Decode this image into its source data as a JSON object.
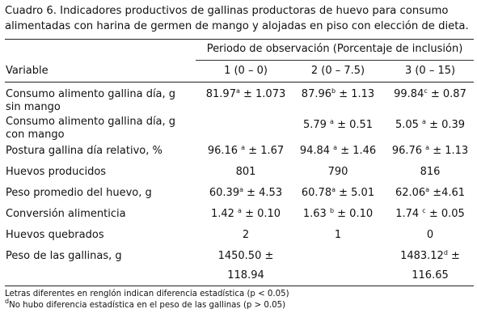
{
  "caption": "Cuadro 6. Indicadores productivos de gallinas productoras de huevo para consumo alimentadas con harina de germen de mango y alojadas en piso con elección de dieta.",
  "header": {
    "variable": "Variable",
    "period": "Periodo de observación (Porcentaje de inclusión)",
    "col1": "1 (0 – 0)",
    "col2": "2 (0 – 7.5)",
    "col3": "3 (0 – 15)"
  },
  "rows": [
    {
      "label": "Consumo alimento gallina día, g  sin mango",
      "c1": {
        "v": "81.97",
        "s": "a",
        "e": " ± 1.073"
      },
      "c2": {
        "v": "87.96",
        "s": "b",
        "e": " ± 1.13"
      },
      "c3": {
        "v": "99.84",
        "s": "c",
        "e": " ± 0.87"
      }
    },
    {
      "label": "Consumo alimento gallina día, g  con mango",
      "c1": {
        "v": "",
        "s": "",
        "e": ""
      },
      "c2": {
        "v": "5.79 ",
        "s": "a",
        "e": " ± 0.51"
      },
      "c3": {
        "v": "5.05 ",
        "s": "a",
        "e": " ± 0.39"
      }
    },
    {
      "label": "Postura gallina día relativo, %",
      "c1": {
        "v": "96.16 ",
        "s": "a",
        "e": " ± 1.67"
      },
      "c2": {
        "v": "94.84 ",
        "s": "a",
        "e": " ± 1.46"
      },
      "c3": {
        "v": "96.76 ",
        "s": "a",
        "e": " ± 1.13"
      }
    },
    {
      "label": "Huevos producidos",
      "c1": {
        "v": "801",
        "s": "",
        "e": ""
      },
      "c2": {
        "v": "790",
        "s": "",
        "e": ""
      },
      "c3": {
        "v": "816",
        "s": "",
        "e": ""
      }
    },
    {
      "label": "Peso promedio del huevo, g",
      "c1": {
        "v": "60.39",
        "s": "a",
        "e": " ± 4.53"
      },
      "c2": {
        "v": "60.78",
        "s": "a",
        "e": " ± 5.01"
      },
      "c3": {
        "v": "62.06",
        "s": "a",
        "e": " ±4.61"
      }
    },
    {
      "label": "Conversión alimenticia",
      "c1": {
        "v": "1.42 ",
        "s": "a",
        "e": " ± 0.10"
      },
      "c2": {
        "v": "1.63 ",
        "s": "b",
        "e": " ± 0.10"
      },
      "c3": {
        "v": "1.74 ",
        "s": "c",
        "e": " ± 0.05"
      }
    },
    {
      "label": "Huevos quebrados",
      "c1": {
        "v": "2",
        "s": "",
        "e": ""
      },
      "c2": {
        "v": "1",
        "s": "",
        "e": ""
      },
      "c3": {
        "v": "0",
        "s": "",
        "e": ""
      }
    },
    {
      "label": "Peso de las gallinas, g",
      "c1": {
        "v": "1450.50 ±",
        "s": "",
        "e": "",
        "v2": "118.94"
      },
      "c2": {
        "v": "",
        "s": "",
        "e": ""
      },
      "c3": {
        "v": "1483.12",
        "s": "d",
        "e": " ±",
        "v2": "116.65"
      }
    }
  ],
  "footnotes": {
    "line1": "Letras diferentes en renglón indican diferencia estadística (p < 0.05)",
    "line2_sup": "d",
    "line2": "No hubo diferencia estadística en el peso de las gallinas (p > 0.05)"
  }
}
